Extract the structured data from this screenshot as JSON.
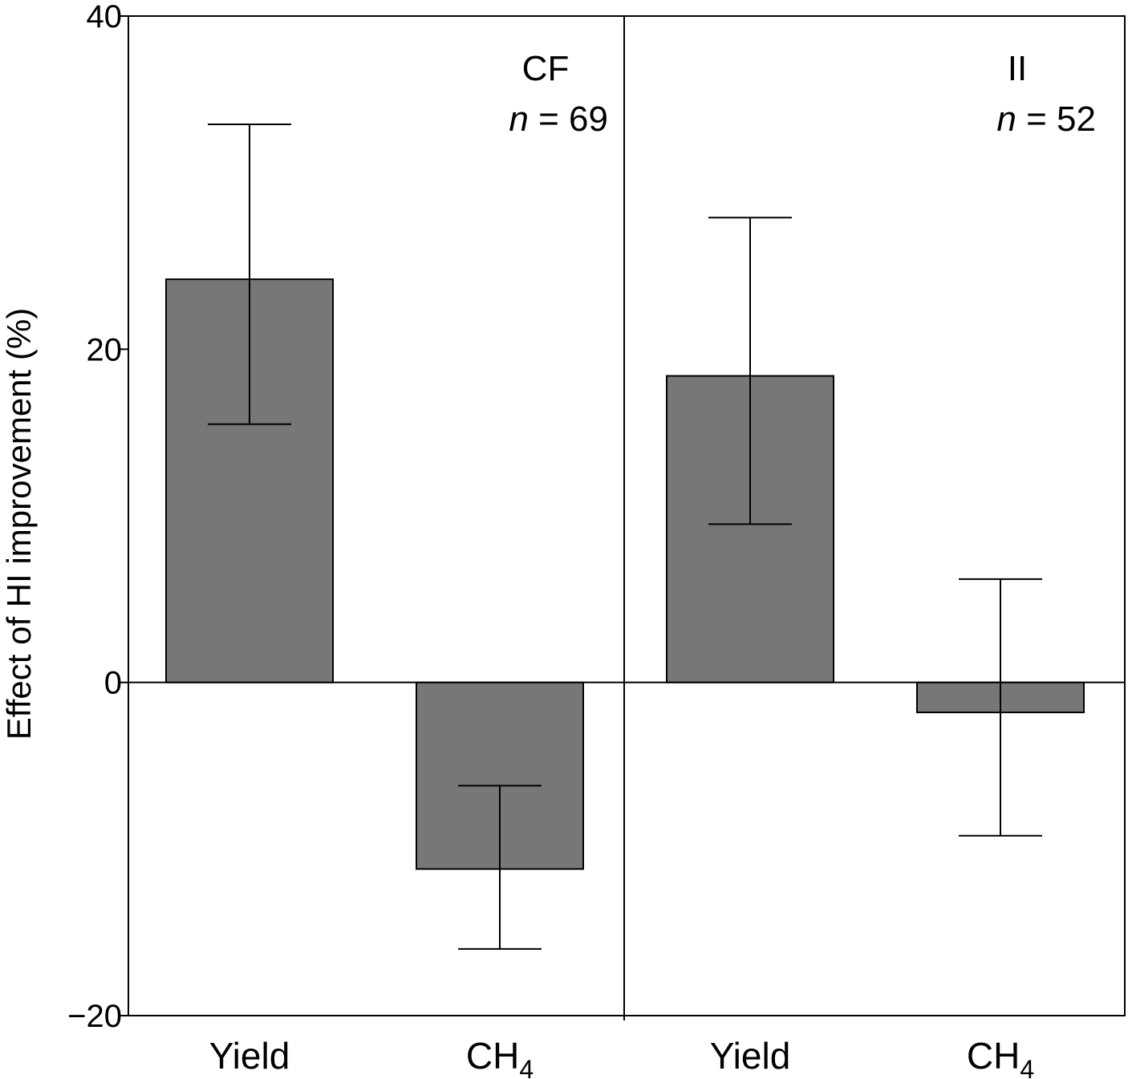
{
  "chart_data": {
    "type": "bar",
    "ylabel": "Effect of HI improvement (%)",
    "ylim": [
      -20,
      40
    ],
    "yticks": [
      40,
      20,
      0,
      -20
    ],
    "ytick_labels": [
      "40",
      "20",
      "0",
      "−20"
    ],
    "colors": {
      "bar": "#777777",
      "line": "#000000"
    },
    "grid": false,
    "panels": [
      {
        "label": "CF",
        "n_label": "n",
        "n_text": " = 69",
        "categories": [
          {
            "name": "Yield",
            "main": "Yield",
            "sub": ""
          },
          {
            "name": "CH4",
            "main": "CH",
            "sub": "4"
          }
        ],
        "values": [
          24.2,
          -11.2
        ],
        "error_low": [
          15.5,
          -16.0
        ],
        "error_high": [
          33.5,
          -6.2
        ]
      },
      {
        "label": "II",
        "n_label": "n",
        "n_text": " = 52",
        "categories": [
          {
            "name": "Yield",
            "main": "Yield",
            "sub": ""
          },
          {
            "name": "CH4",
            "main": "CH",
            "sub": "4"
          }
        ],
        "values": [
          18.4,
          -1.8
        ],
        "error_low": [
          9.5,
          -9.2
        ],
        "error_high": [
          27.9,
          6.2
        ]
      }
    ]
  }
}
